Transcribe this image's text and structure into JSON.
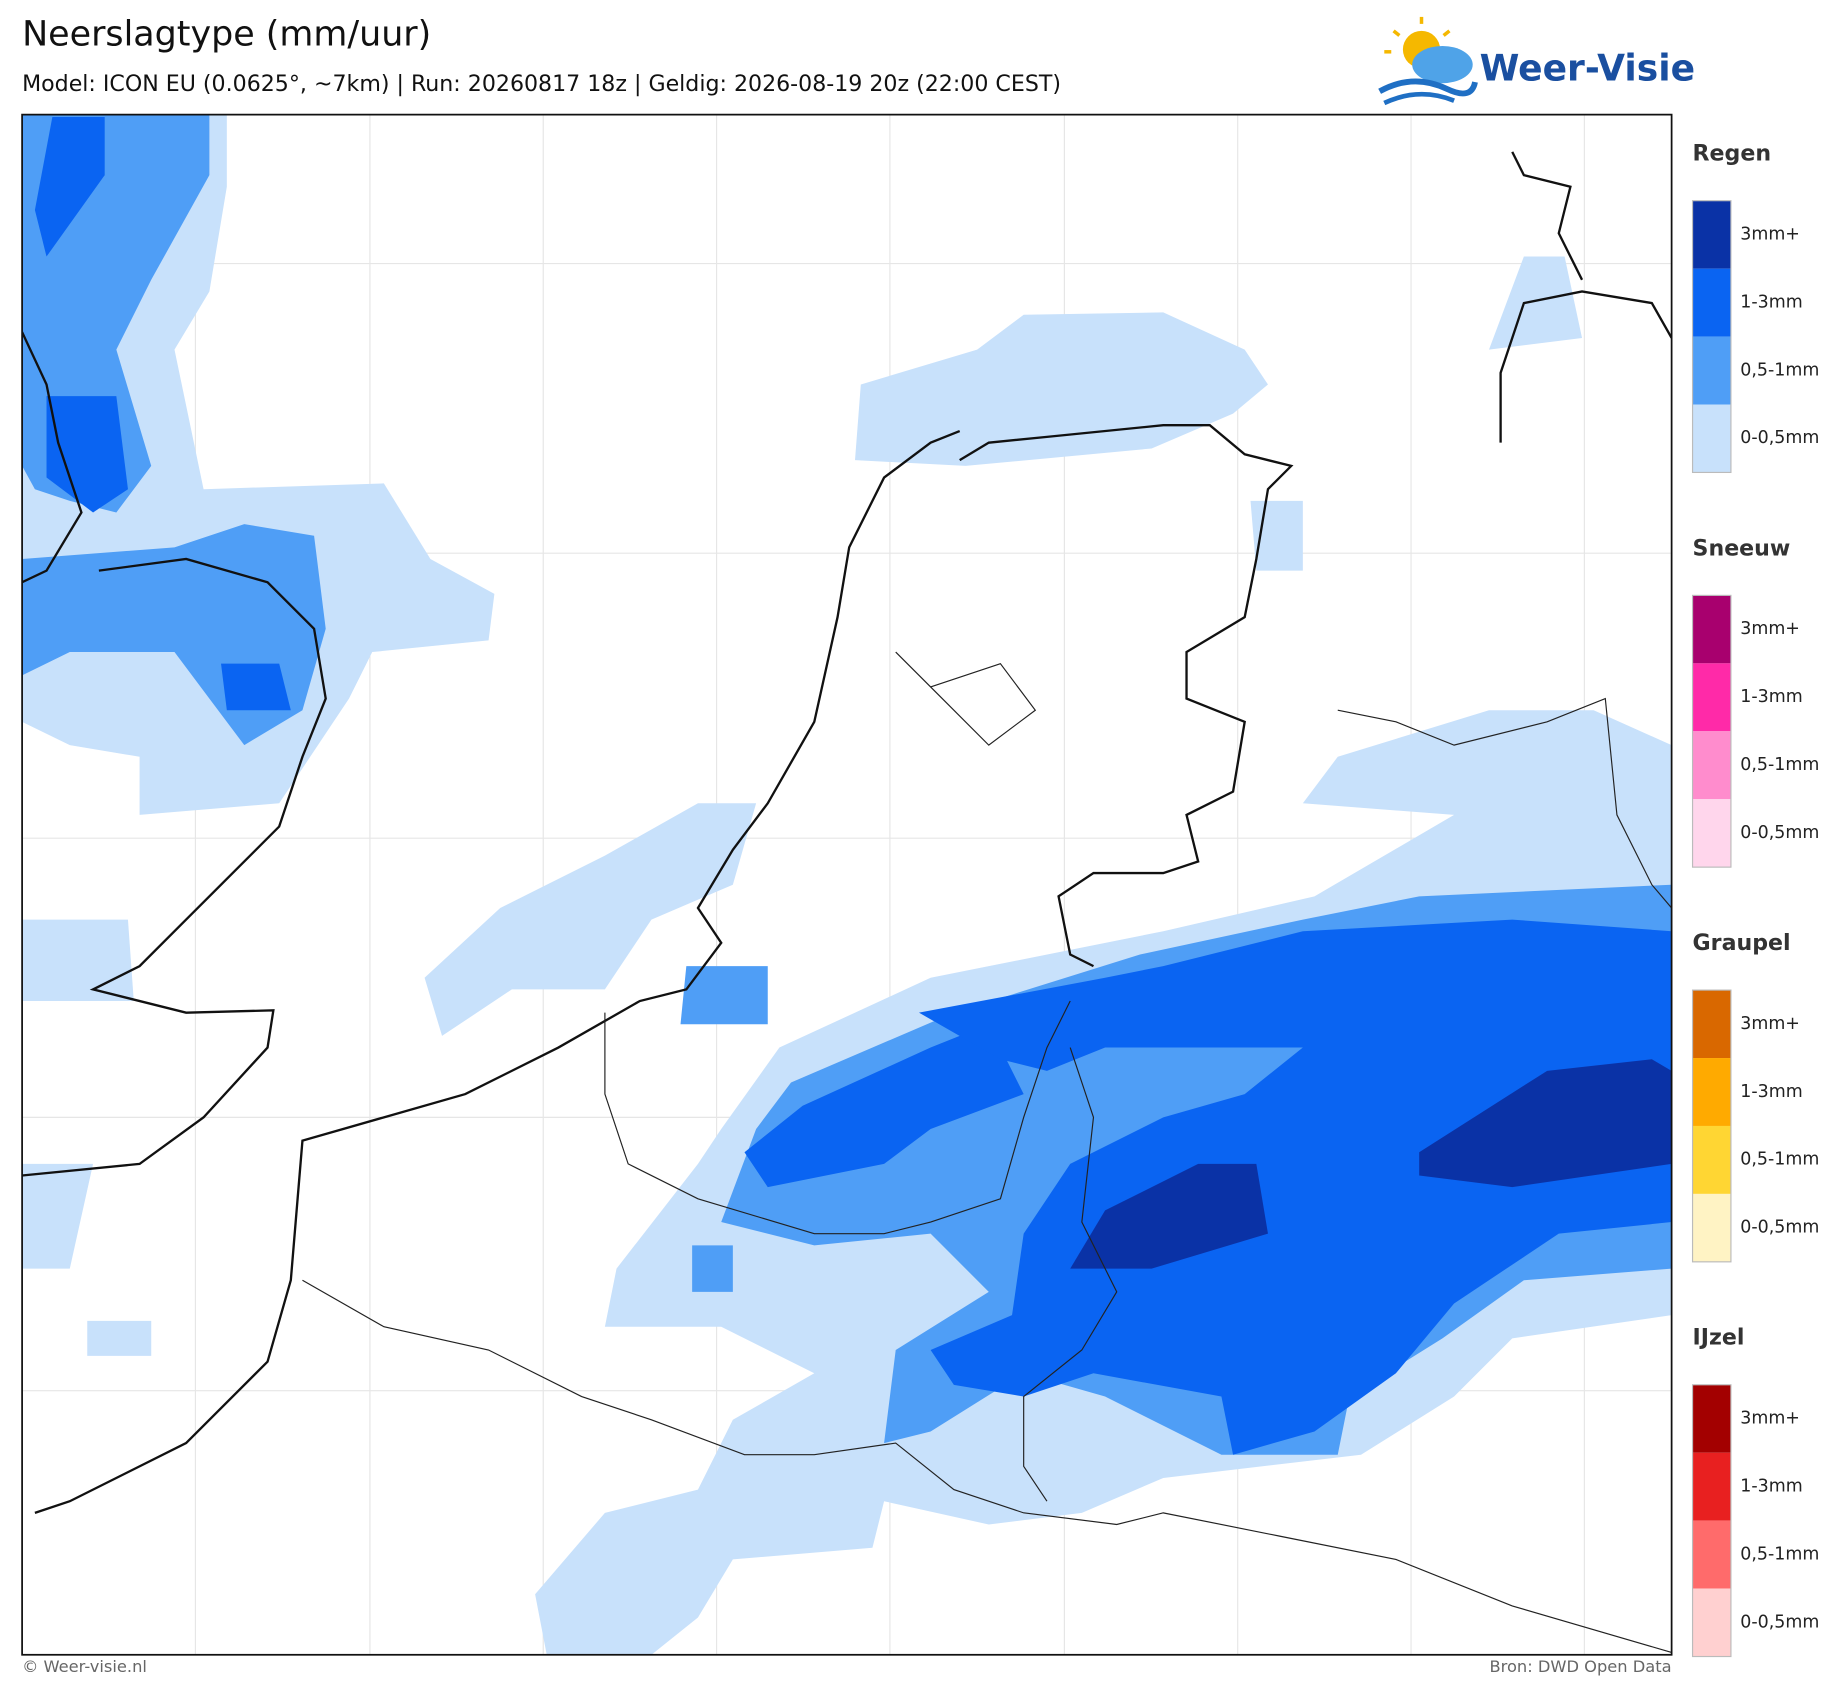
{
  "header": {
    "title": "Neerslagtype (mm/uur)",
    "subtitle": "Model: ICON EU (0.0625°, ~7km)  |  Run: 20260817 18z  |  Geldig: 2026-08-19 20z (22:00 CEST)"
  },
  "logo": {
    "text": "Weer-Visie"
  },
  "legend": [
    {
      "title": "Regen",
      "items": [
        {
          "label": "3mm+",
          "color": "#0a32a6"
        },
        {
          "label": "1-3mm",
          "color": "#0a64f2"
        },
        {
          "label": "0,5-1mm",
          "color": "#4f9ef6"
        },
        {
          "label": "0-0,5mm",
          "color": "#c8e1fb"
        }
      ]
    },
    {
      "title": "Sneeuw",
      "items": [
        {
          "label": "3mm+",
          "color": "#a8006e"
        },
        {
          "label": "1-3mm",
          "color": "#ff2aa8"
        },
        {
          "label": "0,5-1mm",
          "color": "#ff8ccd"
        },
        {
          "label": "0-0,5mm",
          "color": "#ffd6ec"
        }
      ]
    },
    {
      "title": "Graupel",
      "items": [
        {
          "label": "3mm+",
          "color": "#d96800"
        },
        {
          "label": "1-3mm",
          "color": "#ffaa00"
        },
        {
          "label": "0,5-1mm",
          "color": "#ffd633"
        },
        {
          "label": "0-0,5mm",
          "color": "#fff3c4"
        }
      ]
    },
    {
      "title": "IJzel",
      "items": [
        {
          "label": "3mm+",
          "color": "#a30000"
        },
        {
          "label": "1-3mm",
          "color": "#e82020"
        },
        {
          "label": "0,5-1mm",
          "color": "#ff6b6b"
        },
        {
          "label": "0-0,5mm",
          "color": "#ffd0d0"
        }
      ]
    }
  ],
  "footer": {
    "left": "© Weer-visie.nl",
    "right": "Bron: DWD Open Data"
  }
}
